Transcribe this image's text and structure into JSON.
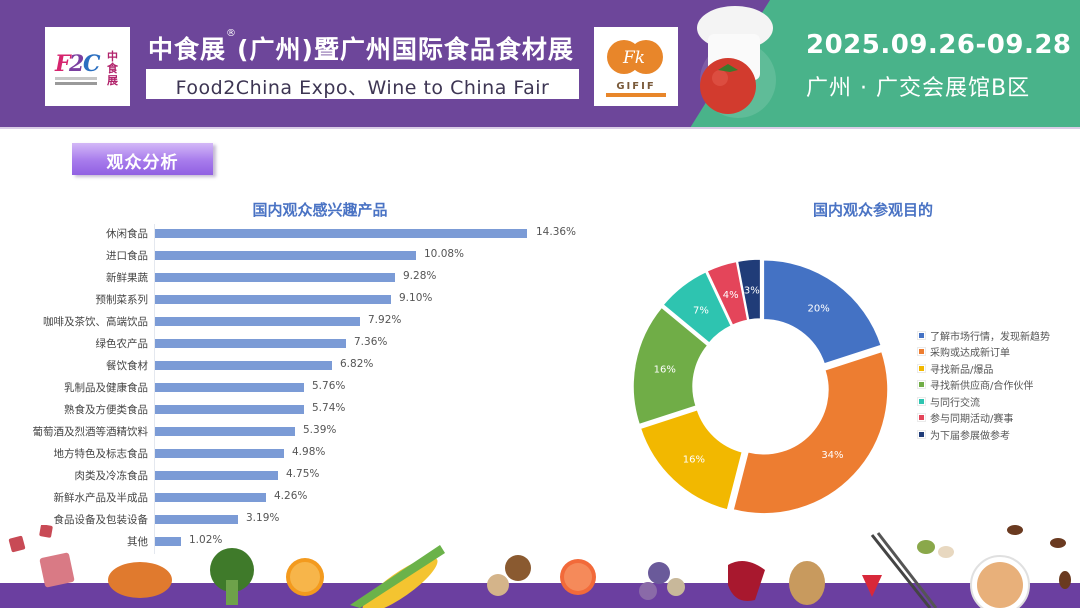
{
  "header": {
    "title_cn_main": "中食展",
    "title_cn_reg": "®",
    "title_cn_rest": "(广州)暨广州国际食品食材展",
    "title_en": "Food2China Expo、Wine to China Fair",
    "date": "2025.09.26-09.28",
    "venue": "广州 · 广交会展馆B区",
    "logo_left": {
      "mark": "F2C",
      "side_text": "中食展",
      "sub_text": "FOOD2CHINA EXPO"
    },
    "logo_right": {
      "mark": "GIFIF"
    },
    "colors": {
      "purple": "#6d469a",
      "green": "#49b38a"
    }
  },
  "section": {
    "tag": "观众分析"
  },
  "bar_chart": {
    "title": "国内观众感兴趣产品",
    "items": [
      {
        "label": "休闲食品",
        "value": "14.36%"
      },
      {
        "label": "进口食品",
        "value": "10.08%"
      },
      {
        "label": "新鲜果蔬",
        "value": "9.28%"
      },
      {
        "label": "预制菜系列",
        "value": "9.10%"
      },
      {
        "label": "咖啡及茶饮、高端饮品",
        "value": "7.92%"
      },
      {
        "label": "绿色农产品",
        "value": "7.36%"
      },
      {
        "label": "餐饮食材",
        "value": "6.82%"
      },
      {
        "label": "乳制品及健康食品",
        "value": "5.76%"
      },
      {
        "label": "熟食及方便类食品",
        "value": "5.74%"
      },
      {
        "label": "葡萄酒及烈酒等酒精饮料",
        "value": "5.39%"
      },
      {
        "label": "地方特色及标志食品",
        "value": "4.98%"
      },
      {
        "label": "肉类及冷冻食品",
        "value": "4.75%"
      },
      {
        "label": "新鲜水产品及半成品",
        "value": "4.26%"
      },
      {
        "label": "食品设备及包装设备",
        "value": "3.19%"
      },
      {
        "label": "其他",
        "value": "1.02%"
      }
    ]
  },
  "donut_chart": {
    "title": "国内观众参观目的",
    "legend": [
      {
        "label": "了解市场行情，发现新趋势",
        "color": "#4472c4"
      },
      {
        "label": "采购或达成新订单",
        "color": "#ed7d31"
      },
      {
        "label": "寻找新品/爆品",
        "color": "#f2b800"
      },
      {
        "label": "寻找新供应商/合作伙伴",
        "color": "#70ad47"
      },
      {
        "label": "与同行交流",
        "color": "#2ec4b0"
      },
      {
        "label": "参与同期活动/赛事",
        "color": "#e4455a"
      },
      {
        "label": "为下届参展做参考",
        "color": "#203c78"
      }
    ]
  },
  "chart_data": [
    {
      "type": "bar",
      "orientation": "horizontal",
      "title": "国内观众感兴趣产品",
      "xlabel": "",
      "ylabel": "",
      "categories": [
        "休闲食品",
        "进口食品",
        "新鲜果蔬",
        "预制菜系列",
        "咖啡及茶饮、高端饮品",
        "绿色农产品",
        "餐饮食材",
        "乳制品及健康食品",
        "熟食及方便类食品",
        "葡萄酒及烈酒等酒精饮料",
        "地方特色及标志食品",
        "肉类及冷冻食品",
        "新鲜水产品及半成品",
        "食品设备及包装设备",
        "其他"
      ],
      "values": [
        14.36,
        10.08,
        9.28,
        9.1,
        7.92,
        7.36,
        6.82,
        5.76,
        5.74,
        5.39,
        4.98,
        4.75,
        4.26,
        3.19,
        1.02
      ],
      "unit": "%",
      "data_labels": true,
      "grid": false,
      "color": "#7b9bd6"
    },
    {
      "type": "pie",
      "variant": "donut",
      "title": "国内观众参观目的",
      "categories": [
        "了解市场行情，发现新趋势",
        "采购或达成新订单",
        "寻找新品/爆品",
        "寻找新供应商/合作伙伴",
        "与同行交流",
        "参与同期活动/赛事",
        "为下届参展做参考"
      ],
      "values": [
        20,
        34,
        16,
        16,
        7,
        4,
        3
      ],
      "labels": [
        "20%",
        "34%",
        "16%",
        "16%",
        "7%",
        "4%",
        "3%"
      ],
      "colors": [
        "#4472c4",
        "#ed7d31",
        "#f2b800",
        "#70ad47",
        "#2ec4b0",
        "#e4455a",
        "#203c78"
      ],
      "legend_position": "right",
      "start_angle_deg": 0,
      "direction": "clockwise"
    }
  ]
}
